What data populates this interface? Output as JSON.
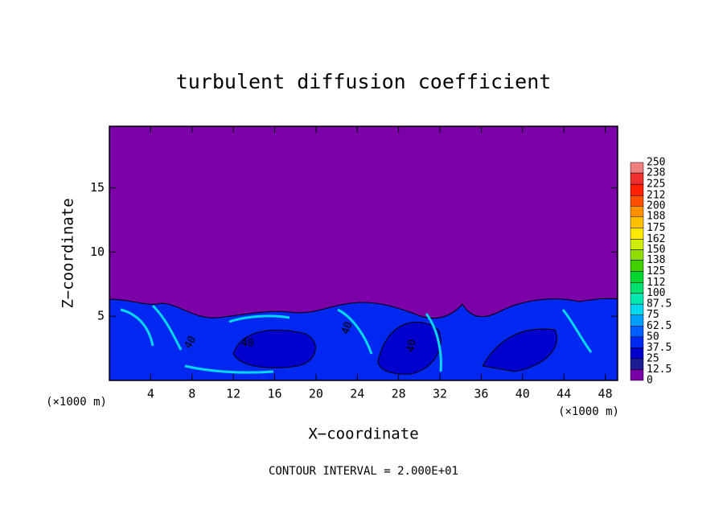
{
  "chart_data": {
    "type": "contour",
    "title": "turbulent diffusion coefficient",
    "x_label": "X−coordinate",
    "y_label": "Z−coordinate",
    "x_unit_labels": [
      "(×1000 m)",
      "(×1000 m)"
    ],
    "footnote": "CONTOUR INTERVAL = 2.000E+01",
    "contour_labels": [
      "40",
      "40",
      "40",
      "40"
    ],
    "xlim": [
      0,
      49.2
    ],
    "xticks": [
      4,
      8,
      12,
      16,
      20,
      24,
      28,
      32,
      36,
      40,
      44,
      48
    ],
    "ylim": [
      0,
      19.8
    ],
    "yticks": [
      5,
      10,
      15
    ],
    "colorbar": {
      "levels": [
        0,
        12.5,
        25,
        37.5,
        50,
        62.5,
        75,
        87.5,
        100,
        112,
        125,
        138,
        150,
        162,
        175,
        188,
        200,
        212,
        225,
        238,
        250
      ],
      "colors": [
        "#7b00a8",
        "#1c1c96",
        "#0000cc",
        "#0028f0",
        "#0060ff",
        "#00a0ff",
        "#00d8f0",
        "#00e8b0",
        "#00e070",
        "#00d830",
        "#40d000",
        "#90dc00",
        "#d0ec00",
        "#ffe800",
        "#ffc000",
        "#ff9000",
        "#ff5000",
        "#ff2000",
        "#f03030",
        "#f08080"
      ]
    }
  }
}
